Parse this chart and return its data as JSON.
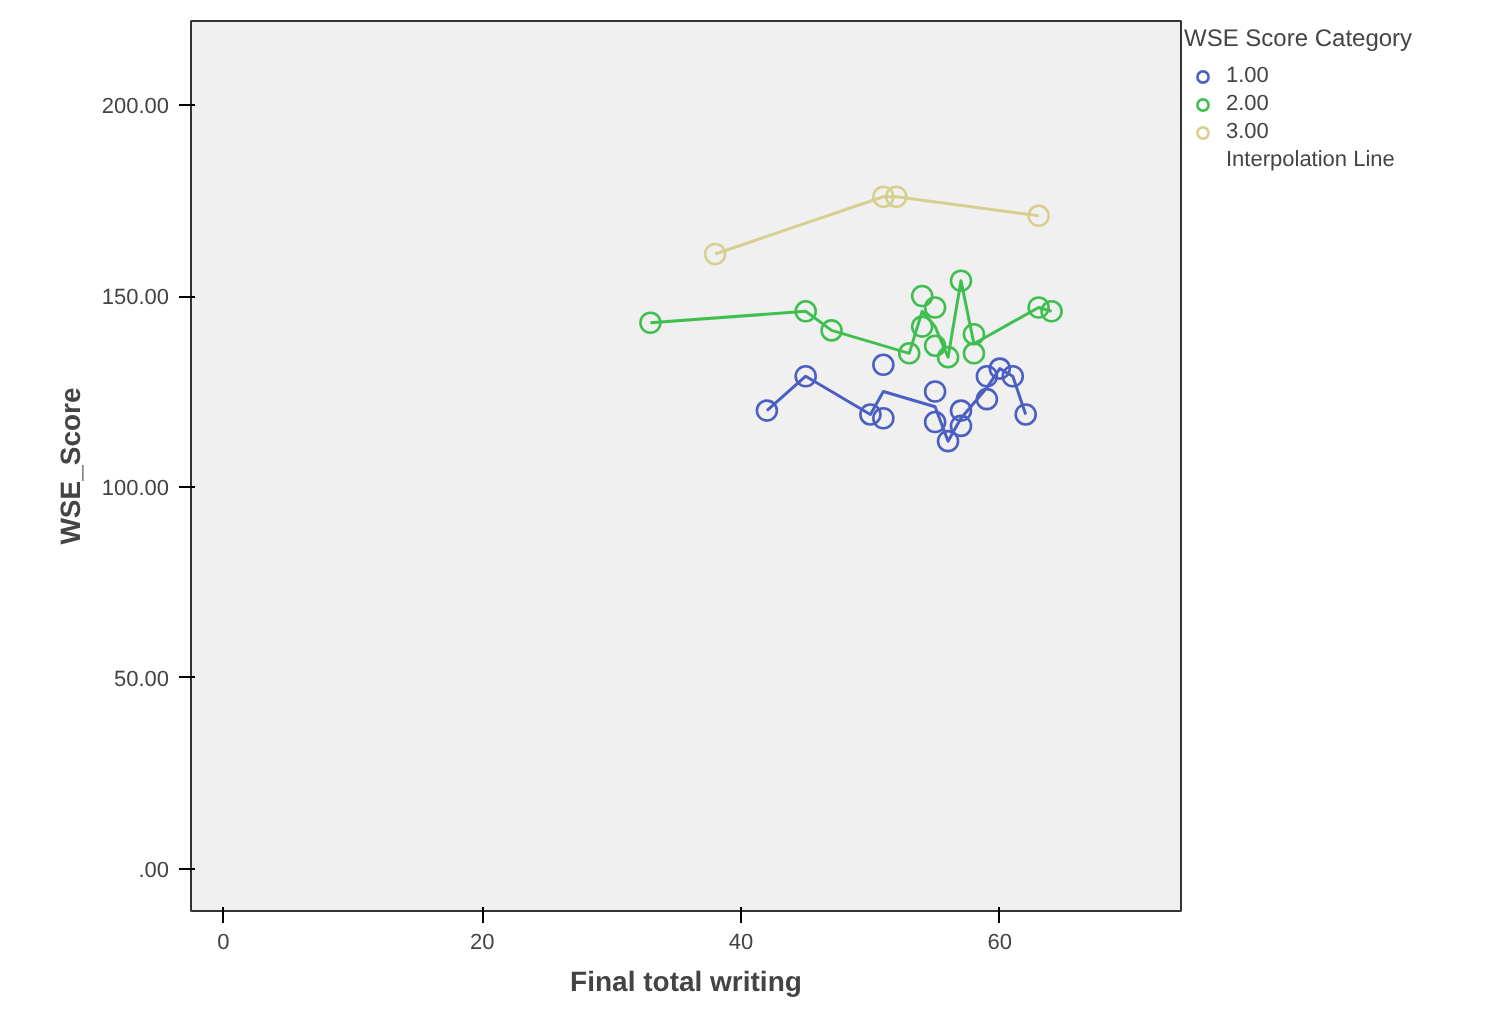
{
  "chart_data": {
    "type": "scatter",
    "xlabel": "Final total writing",
    "ylabel": "WSE_Score",
    "legend_title": "WSE Score Category",
    "xlim": [
      -2.5,
      74
    ],
    "xticks": [
      0,
      20,
      40,
      60
    ],
    "ylim": [
      -11,
      222
    ],
    "yticks": [
      {
        "value": 0,
        "label": ".00"
      },
      {
        "value": 50,
        "label": "50.00"
      },
      {
        "value": 100,
        "label": "100.00"
      },
      {
        "value": 150,
        "label": "150.00"
      },
      {
        "value": 200,
        "label": "200.00"
      }
    ],
    "grid": false,
    "legend": "top right",
    "marker": "circle",
    "line_style": "solid",
    "series": [
      {
        "name": "1.00",
        "color": "#4a5fc1",
        "x": [
          42,
          45,
          50,
          51,
          51,
          55,
          55,
          56,
          57,
          57,
          59,
          59,
          60,
          61,
          62
        ],
        "values": [
          120,
          129,
          119,
          118,
          132,
          125,
          117,
          112,
          120,
          116,
          123,
          129,
          131,
          129,
          119
        ]
      },
      {
        "name": "2.00",
        "color": "#3fbf4f",
        "x": [
          33,
          45,
          47,
          53,
          54,
          54,
          55,
          55,
          56,
          57,
          58,
          58,
          63,
          64
        ],
        "values": [
          143,
          146,
          141,
          135,
          150,
          142,
          147,
          137,
          134,
          154,
          140,
          135,
          147,
          146
        ]
      },
      {
        "name": "3.00",
        "color": "#d6cf8f",
        "x": [
          38,
          51,
          52,
          63
        ],
        "values": [
          161,
          176,
          176,
          171
        ]
      },
      {
        "type": "line",
        "marker": "none",
        "color": "#4a5fc1",
        "x": [
          42,
          45,
          50,
          51,
          55,
          56,
          57,
          59,
          60,
          61,
          62
        ],
        "values": [
          120,
          129,
          119,
          125,
          121,
          112,
          118,
          126,
          131,
          129,
          119
        ]
      },
      {
        "type": "line",
        "marker": "none",
        "color": "#3fbf4f",
        "x": [
          33,
          45,
          47,
          53,
          54,
          55,
          56,
          57,
          58,
          63,
          64
        ],
        "values": [
          143,
          146,
          141,
          135,
          146,
          142,
          134,
          154,
          137.5,
          147,
          146
        ]
      },
      {
        "type": "line",
        "marker": "none",
        "color": "#d6cf8f",
        "x": [
          38,
          51,
          52,
          63
        ],
        "values": [
          161,
          176,
          176,
          171
        ]
      },
      {
        "name": "Interpolation Line",
        "type": "line",
        "marker": "none",
        "color": "#404040"
      }
    ]
  }
}
